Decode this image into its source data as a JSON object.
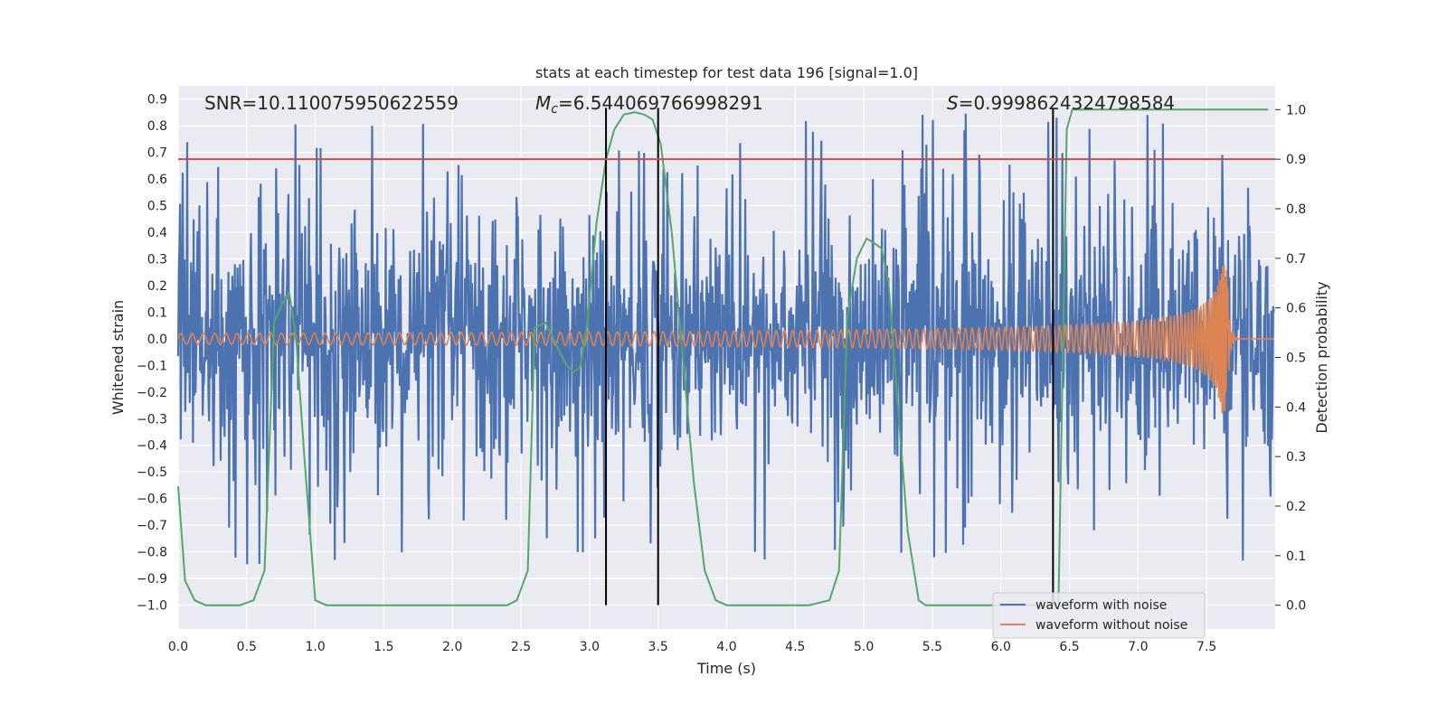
{
  "chart_data": {
    "type": "line",
    "title": "stats at each timestep for test data 196 [signal=1.0]",
    "xlabel": "Time (s)",
    "ylabel": "Whitened strain",
    "y2label": "Detection probability",
    "xlim": [
      0.0,
      8.0
    ],
    "ylim": [
      -1.09,
      0.95
    ],
    "y2lim": [
      -0.048,
      1.048
    ],
    "xticks": [
      "0.0",
      "0.5",
      "1.0",
      "1.5",
      "2.0",
      "2.5",
      "3.0",
      "3.5",
      "4.0",
      "4.5",
      "5.0",
      "5.5",
      "6.0",
      "6.5",
      "7.0",
      "7.5"
    ],
    "xtick_values": [
      0.0,
      0.5,
      1.0,
      1.5,
      2.0,
      2.5,
      3.0,
      3.5,
      4.0,
      4.5,
      5.0,
      5.5,
      6.0,
      6.5,
      7.0,
      7.5
    ],
    "yticks": [
      "0.9",
      "0.8",
      "0.7",
      "0.6",
      "0.5",
      "0.4",
      "0.3",
      "0.2",
      "0.1",
      "0.0",
      "−0.1",
      "−0.2",
      "−0.3",
      "−0.4",
      "−0.5",
      "−0.6",
      "−0.7",
      "−0.8",
      "−0.9",
      "−1.0"
    ],
    "ytick_values": [
      0.9,
      0.8,
      0.7,
      0.6,
      0.5,
      0.4,
      0.3,
      0.2,
      0.1,
      0.0,
      -0.1,
      -0.2,
      -0.3,
      -0.4,
      -0.5,
      -0.6,
      -0.7,
      -0.8,
      -0.9,
      -1.0
    ],
    "y2ticks": [
      "1.0",
      "0.9",
      "0.8",
      "0.7",
      "0.6",
      "0.5",
      "0.4",
      "0.3",
      "0.2",
      "0.1",
      "0.0"
    ],
    "y2tick_values": [
      1.0,
      0.9,
      0.8,
      0.7,
      0.6,
      0.5,
      0.4,
      0.3,
      0.2,
      0.1,
      0.0
    ],
    "annotations": {
      "snr": "SNR=10.110075950622559",
      "mc_symbol": "M",
      "mc_sub": "c",
      "mc_value": "=6.544069766998291",
      "s_symbol": "S",
      "s_value": "=0.9998624324798584"
    },
    "threshold": {
      "y2": 0.9,
      "color": "#c44e52"
    },
    "vlines": [
      3.12,
      3.5,
      6.38
    ],
    "series": [
      {
        "name": "waveform with noise",
        "color": "#4c72b0",
        "axis": "left",
        "kind": "noise",
        "noise_envelope": [
          -0.6,
          0.6
        ],
        "peak_range": [
          -1.0,
          0.85
        ]
      },
      {
        "name": "waveform without noise",
        "color": "#dd8452",
        "axis": "left",
        "kind": "chirp",
        "amplitude_start": 0.02,
        "amplitude_peak": 0.28,
        "merger_time": 7.65
      },
      {
        "name": "detection probability",
        "color": "#55a868",
        "axis": "right",
        "kind": "probability",
        "x": [
          0.0,
          0.05,
          0.12,
          0.2,
          0.3,
          0.45,
          0.55,
          0.63,
          0.7,
          0.76,
          0.81,
          0.86,
          0.92,
          1.0,
          1.08,
          1.2,
          1.5,
          2.0,
          2.3,
          2.4,
          2.47,
          2.55,
          2.6,
          2.68,
          2.75,
          2.82,
          2.88,
          2.93,
          2.98,
          3.05,
          3.12,
          3.18,
          3.25,
          3.33,
          3.4,
          3.46,
          3.52,
          3.6,
          3.68,
          3.76,
          3.84,
          3.92,
          4.0,
          4.2,
          4.6,
          4.75,
          4.82,
          4.88,
          4.95,
          5.02,
          5.08,
          5.13,
          5.18,
          5.25,
          5.32,
          5.4,
          5.45,
          5.5,
          5.6,
          6.0,
          6.3,
          6.36,
          6.38,
          6.42,
          6.48,
          6.52,
          6.6,
          7.0,
          7.5,
          7.95
        ],
        "y": [
          0.24,
          0.05,
          0.01,
          0.0,
          0.0,
          0.0,
          0.01,
          0.07,
          0.57,
          0.61,
          0.63,
          0.54,
          0.3,
          0.01,
          0.0,
          0.0,
          0.0,
          0.0,
          0.0,
          0.0,
          0.01,
          0.07,
          0.56,
          0.57,
          0.53,
          0.49,
          0.47,
          0.48,
          0.56,
          0.77,
          0.9,
          0.96,
          0.99,
          0.995,
          0.99,
          0.98,
          0.93,
          0.75,
          0.5,
          0.25,
          0.07,
          0.01,
          0.0,
          0.0,
          0.0,
          0.01,
          0.07,
          0.58,
          0.7,
          0.74,
          0.73,
          0.72,
          0.65,
          0.4,
          0.15,
          0.01,
          0.0,
          0.0,
          0.0,
          0.0,
          0.0,
          0.0,
          0.0,
          0.0,
          0.96,
          1.0,
          1.0,
          1.0,
          1.0,
          1.0
        ]
      }
    ],
    "legend": {
      "position": "lower-right",
      "entries": [
        "waveform with noise",
        "waveform without noise"
      ]
    }
  }
}
